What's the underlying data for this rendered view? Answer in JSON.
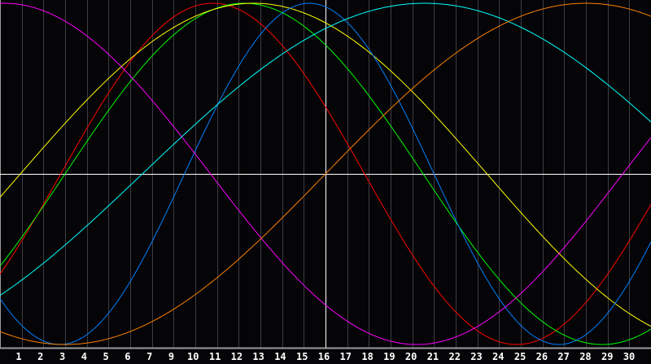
{
  "chart_data": {
    "type": "line",
    "title": "",
    "xlabel": "",
    "ylabel": "",
    "x_unit": "day",
    "xlim": [
      0,
      30
    ],
    "ylim": [
      -1,
      1
    ],
    "grid": "vertical",
    "legend": "none",
    "tick_labels": [
      "1",
      "2",
      "3",
      "4",
      "5",
      "6",
      "7",
      "9",
      "10",
      "11",
      "12",
      "13",
      "14",
      "15",
      "16",
      "17",
      "18",
      "19",
      "20",
      "21",
      "22",
      "23",
      "24",
      "25",
      "26",
      "27",
      "28",
      "29",
      "30"
    ],
    "marker_day": 15,
    "series": [
      {
        "color": "#ff0000",
        "period_days": 28,
        "zero_cross_up_day": 2.8
      },
      {
        "color": "#00ff00",
        "period_days": 33,
        "zero_cross_up_day": 3.0
      },
      {
        "color": "#ffff00",
        "period_days": 43,
        "zero_cross_up_day": 0.94
      },
      {
        "color": "#0080ff",
        "period_days": 23,
        "zero_cross_up_day": 8.5
      },
      {
        "color": "#ff00ff",
        "period_days": 38,
        "zero_cross_up_day": -9.3
      },
      {
        "color": "#00ffff",
        "period_days": 52,
        "zero_cross_up_day": 6.56
      },
      {
        "color": "#ff8000",
        "period_days": 48,
        "zero_cross_up_day": 15
      }
    ]
  }
}
